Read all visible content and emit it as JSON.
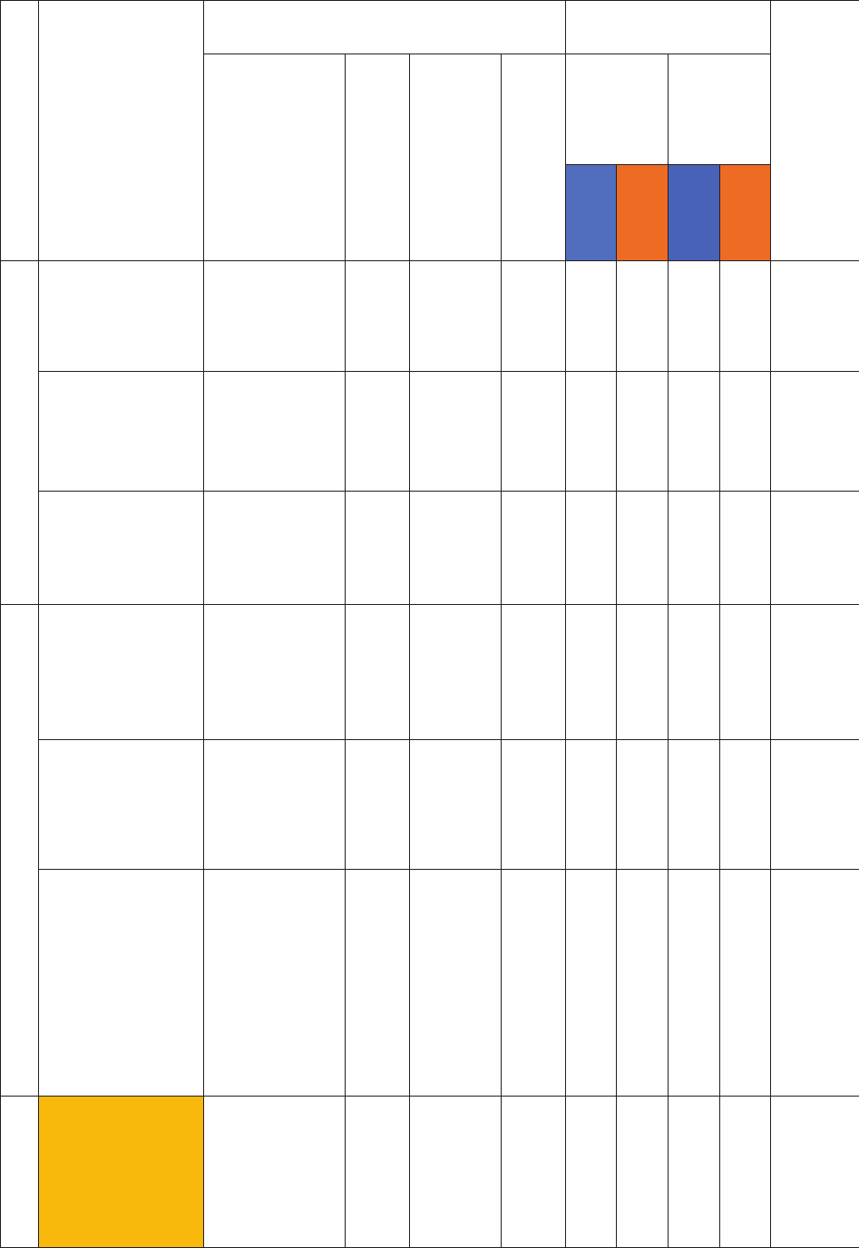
{
  "table": {
    "colors": {
      "header_blue_1": "#506ebd",
      "header_orange_1": "#ee6b24",
      "header_blue_2": "#4862b7",
      "header_orange_2": "#ee6b24",
      "highlight_yellow": "#f9b90c",
      "border": "#231f20"
    }
  }
}
